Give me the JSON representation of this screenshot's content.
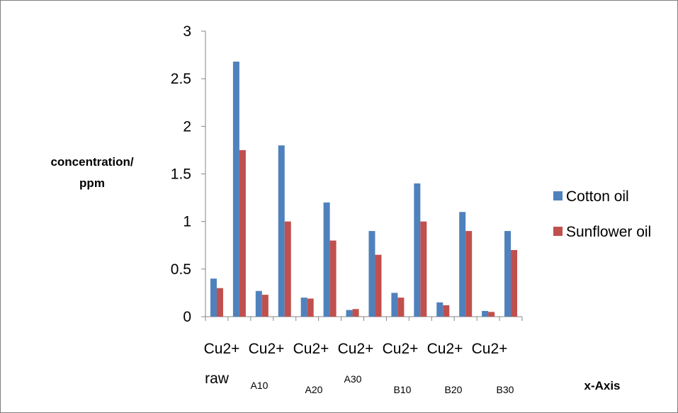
{
  "chart_data": {
    "type": "bar",
    "title": "",
    "ylabel_lines": [
      "concentration/",
      "ppm"
    ],
    "xlabel": "x-Axis",
    "ylim": [
      0,
      3
    ],
    "yticks": [
      "0",
      "0.5",
      "1",
      "1.5",
      "2",
      "2.5",
      "3"
    ],
    "ytick_values": [
      0,
      0.5,
      1,
      1.5,
      2,
      2.5,
      3
    ],
    "categories": [
      "Cu2+ raw",
      "",
      "Cu2+ A10",
      "",
      "Cu2+ A20",
      "",
      "Cu2+ A30",
      "",
      "Cu2+ B10",
      "",
      "Cu2+ B20",
      "",
      "Cu2+ B30",
      ""
    ],
    "category_labels": [
      {
        "main": "Cu2+",
        "sub": "raw"
      },
      {
        "main": "Cu2+",
        "sub": "A10"
      },
      {
        "main": "Cu2+",
        "sub": "A20"
      },
      {
        "main": "Cu2+",
        "sub": "A30"
      },
      {
        "main": "Cu2+",
        "sub": "B10"
      },
      {
        "main": "Cu2+",
        "sub": "B20"
      },
      {
        "main": "Cu2+",
        "sub": "B30"
      }
    ],
    "series": [
      {
        "name": "Cotton oil",
        "color": "#4f81bd",
        "values": [
          0.4,
          2.68,
          0.27,
          1.8,
          0.2,
          1.2,
          0.07,
          0.9,
          0.25,
          1.4,
          0.15,
          1.1,
          0.06,
          0.9
        ]
      },
      {
        "name": "Sunflower oil",
        "color": "#c0504d",
        "values": [
          0.3,
          1.75,
          0.23,
          1.0,
          0.19,
          0.8,
          0.08,
          0.65,
          0.2,
          1.0,
          0.12,
          0.9,
          0.05,
          0.7
        ]
      }
    ],
    "legend_position": "right",
    "grid": false
  }
}
